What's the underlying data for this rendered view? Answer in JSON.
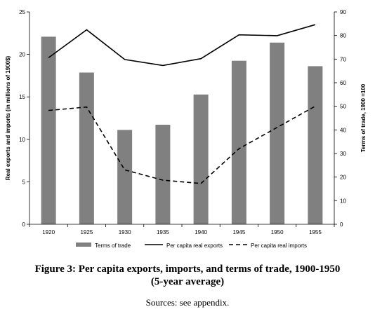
{
  "chart_data": {
    "type": "bar",
    "categories": [
      "1920",
      "1925",
      "1930",
      "1935",
      "1940",
      "1945",
      "1950",
      "1955"
    ],
    "series": [
      {
        "name": "Terms of trade",
        "type": "bar",
        "axis": "right",
        "color": "#808080",
        "values": [
          79.5,
          64.3,
          40.0,
          42.2,
          55.0,
          69.3,
          77.0,
          67.0
        ]
      },
      {
        "name": "Per capita real exports",
        "type": "line",
        "style": "solid",
        "axis": "left",
        "color": "#000000",
        "values": [
          19.6,
          22.9,
          19.4,
          18.7,
          19.5,
          22.3,
          22.2,
          23.5
        ]
      },
      {
        "name": "Per capita real imports",
        "type": "line",
        "style": "dashed",
        "axis": "left",
        "color": "#000000",
        "values": [
          13.4,
          13.8,
          6.4,
          5.2,
          4.8,
          8.9,
          11.4,
          13.9
        ]
      }
    ],
    "ylabel": "Real exports and imports (in millions of 1900$)",
    "y2label": "Terms of trade, 1900 =100",
    "ylim": [
      0,
      25
    ],
    "y2lim": [
      0,
      90
    ],
    "yticks": [
      "0",
      "5",
      "10",
      "15",
      "20",
      "25"
    ],
    "y2ticks": [
      "0",
      "10",
      "20",
      "30",
      "40",
      "50",
      "60",
      "70",
      "80",
      "90"
    ],
    "grid": false,
    "legend_position": "bottom"
  },
  "caption": {
    "title": "Figure 3: Per capita exports, imports, and terms of trade, 1900-1950",
    "subtitle": "(5-year average)",
    "source": "Sources: see appendix."
  }
}
